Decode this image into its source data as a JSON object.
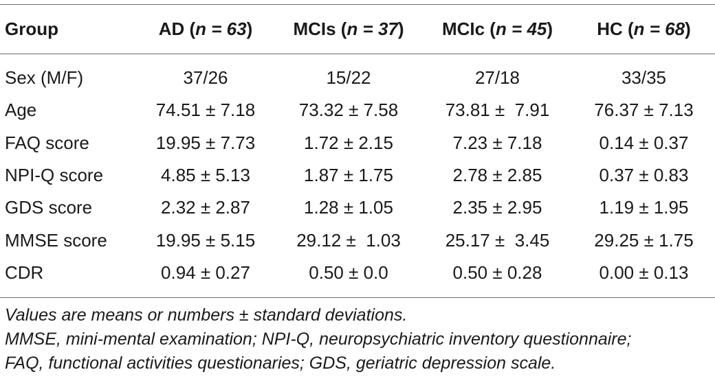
{
  "table": {
    "header": {
      "group": "Group",
      "columns": [
        {
          "name": "AD",
          "n": "n = 63"
        },
        {
          "name": "MCIs",
          "n": "n = 37"
        },
        {
          "name": "MCIc",
          "n": "n = 45"
        },
        {
          "name": "HC",
          "n": "n = 68"
        }
      ]
    },
    "rows": [
      {
        "label": "Sex (M/F)",
        "values": [
          "37/26",
          "15/22",
          "27/18",
          "33/35"
        ]
      },
      {
        "label": "Age",
        "values": [
          "74.51 ± 7.18",
          "73.32 ± 7.58",
          "73.81 ±  7.91",
          "76.37 ± 7.13"
        ]
      },
      {
        "label": "FAQ score",
        "values": [
          "19.95 ± 7.73",
          "1.72 ± 2.15",
          "7.23 ± 7.18",
          "0.14 ± 0.37"
        ]
      },
      {
        "label": "NPI-Q score",
        "values": [
          "4.85 ± 5.13",
          "1.87 ± 1.75",
          "2.78 ± 2.85",
          "0.37 ± 0.83"
        ]
      },
      {
        "label": "GDS score",
        "values": [
          "2.32 ± 2.87",
          "1.28 ± 1.05",
          "2.35 ± 2.95",
          "1.19 ± 1.95"
        ]
      },
      {
        "label": "MMSE score",
        "values": [
          "19.95 ± 5.15",
          "29.12 ±  1.03",
          "25.17 ±  3.45",
          "29.25 ± 1.75"
        ]
      },
      {
        "label": "CDR",
        "values": [
          "0.94 ± 0.27",
          "0.50 ± 0.0",
          "0.50 ± 0.28",
          "0.00 ± 0.13"
        ]
      }
    ]
  },
  "notes": [
    "Values are means or numbers ± standard deviations.",
    "MMSE, mini-mental examination; NPI-Q, neuropsychiatric inventory questionnaire;",
    "FAQ, functional activities questionaries; GDS, geriatric depression scale."
  ]
}
